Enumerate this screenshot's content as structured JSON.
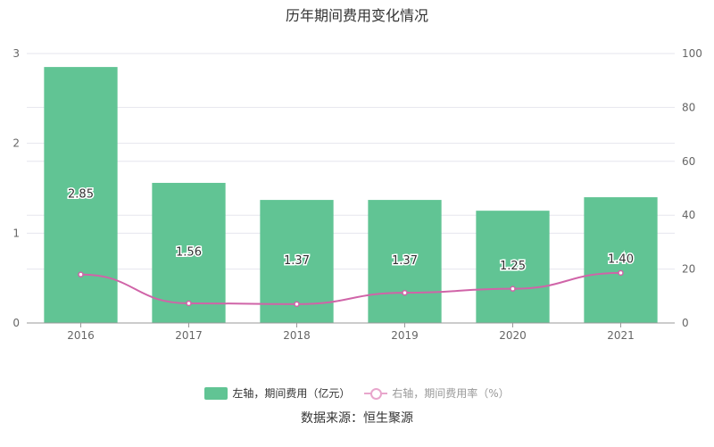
{
  "title": "历年期间费用变化情况",
  "source": "数据来源：恒生聚源",
  "legend": {
    "bar_label": "左轴，期间费用（亿元）",
    "line_label": "右轴，期间费用率（%）"
  },
  "colors": {
    "bar": "#61c494",
    "line": "#d064a8",
    "grid": "#e6e6ee",
    "axis": "#666666"
  },
  "chart_data": {
    "type": "bar",
    "categories": [
      "2016",
      "2017",
      "2018",
      "2019",
      "2020",
      "2021"
    ],
    "series": [
      {
        "name": "左轴，期间费用（亿元）",
        "type": "bar",
        "axis": "left",
        "values": [
          2.85,
          1.56,
          1.37,
          1.37,
          1.25,
          1.4
        ]
      },
      {
        "name": "右轴，期间费用率（%）",
        "type": "line",
        "axis": "right",
        "values": [
          18.0,
          7.3,
          7.0,
          11.2,
          12.7,
          18.6
        ]
      }
    ],
    "data_labels": [
      "2.85",
      "1.56",
      "1.37",
      "1.37",
      "1.25",
      "1.40"
    ],
    "left_axis": {
      "min": 0,
      "max": 3,
      "ticks": [
        "0",
        "1",
        "2",
        "3"
      ]
    },
    "right_axis": {
      "min": 0,
      "max": 100,
      "ticks": [
        "0",
        "20",
        "40",
        "60",
        "80",
        "100"
      ]
    },
    "grid": true,
    "legend_position": "bottom"
  }
}
